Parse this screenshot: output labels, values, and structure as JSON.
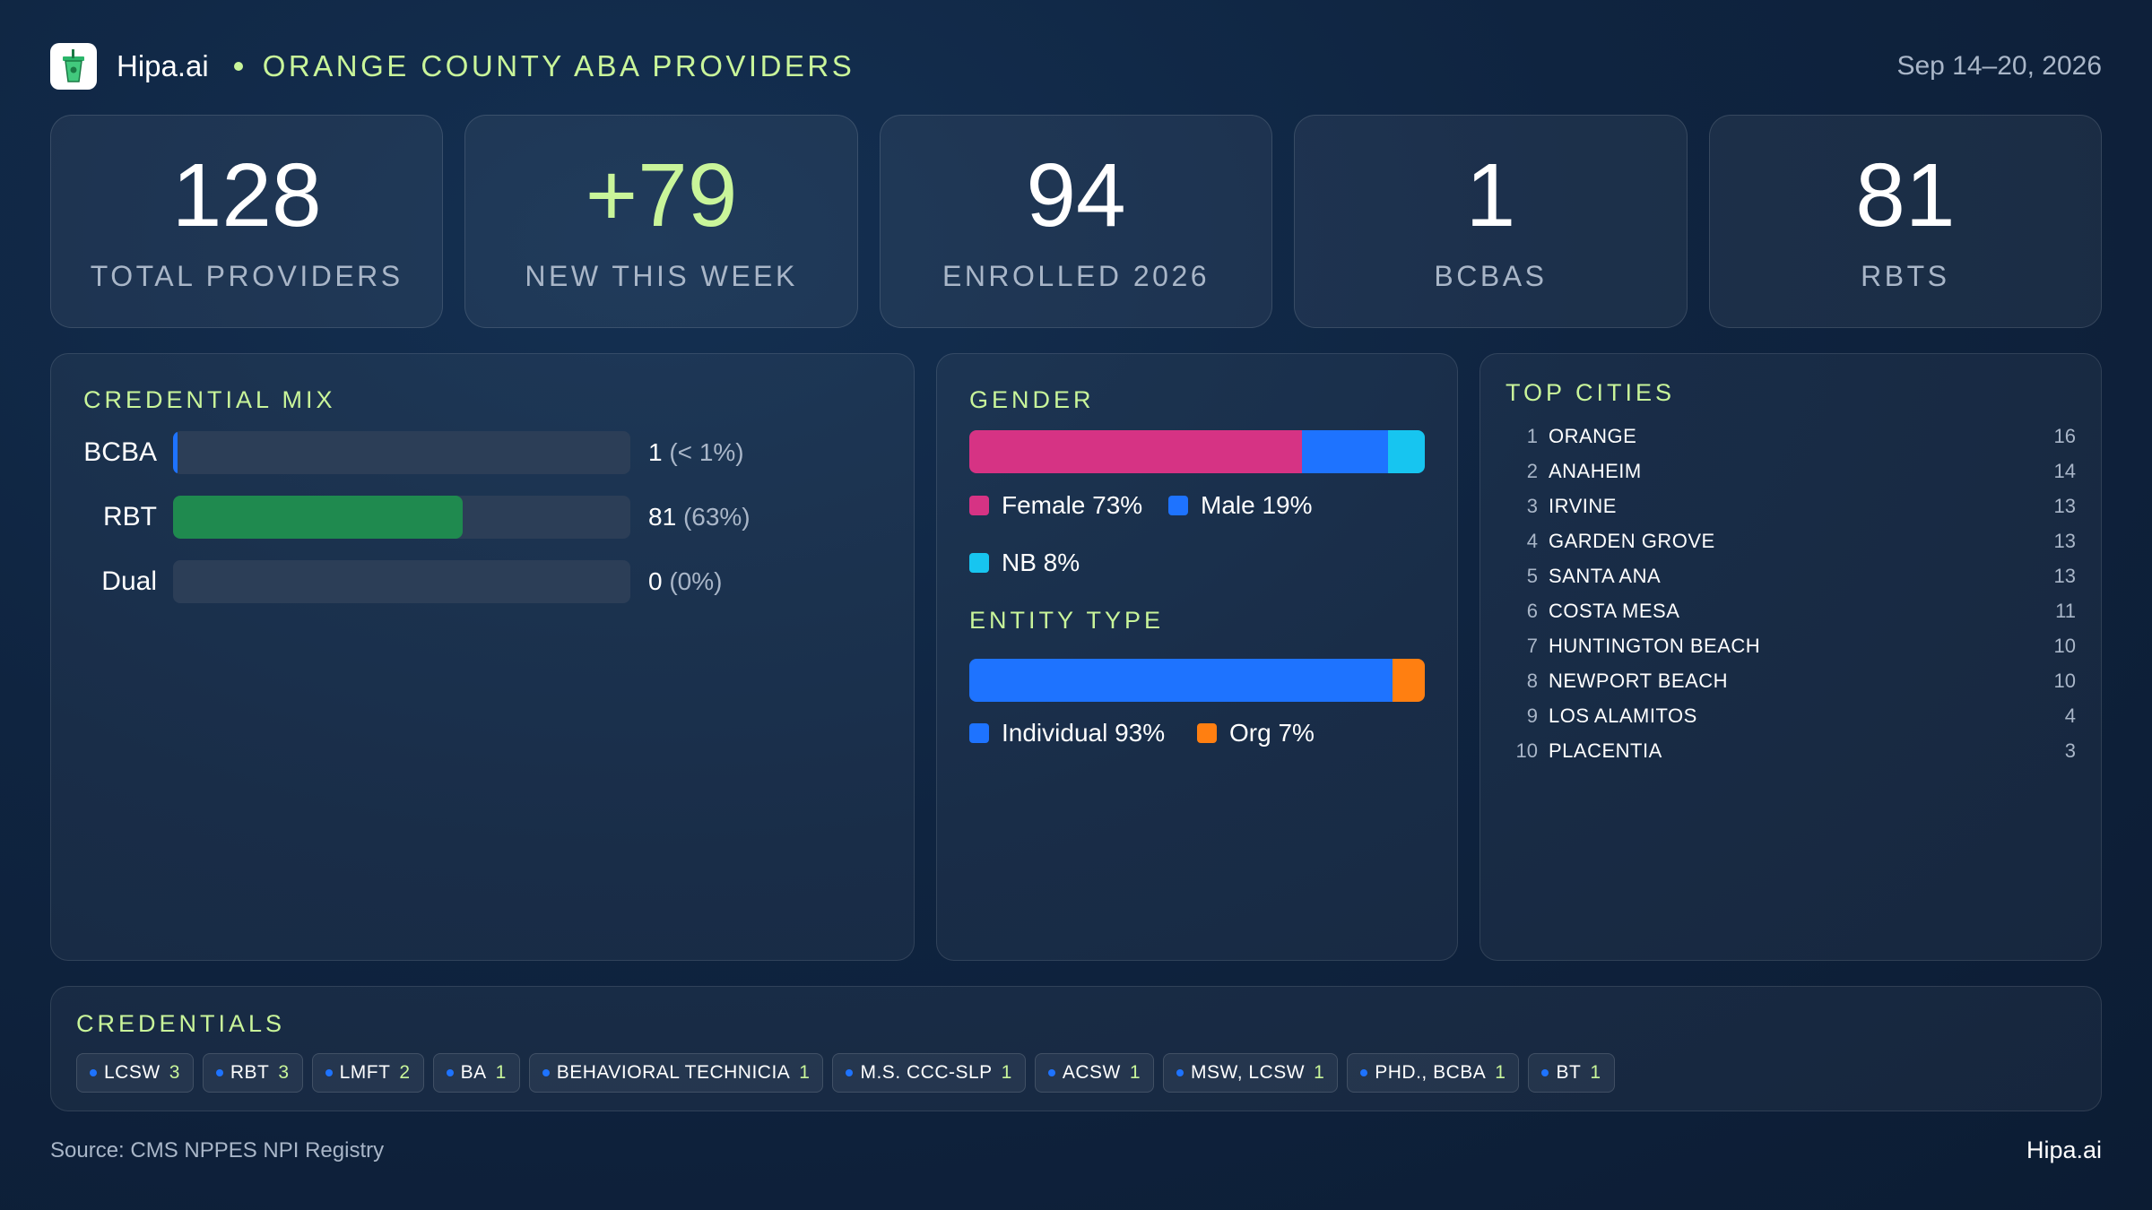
{
  "header": {
    "brand": "Hipa.ai",
    "title": "ORANGE COUNTY ABA PROVIDERS",
    "date_range": "Sep 14–20, 2026"
  },
  "kpis": [
    {
      "value": "128",
      "label": "TOTAL PROVIDERS"
    },
    {
      "value": "+79",
      "label": "NEW THIS WEEK"
    },
    {
      "value": "94",
      "label": "ENROLLED 2026"
    },
    {
      "value": "1",
      "label": "BCBAS"
    },
    {
      "value": "81",
      "label": "RBTS"
    }
  ],
  "colors": {
    "accent": "#c9f59a",
    "bcba": "#1e73ff",
    "rbt": "#1f8a4f",
    "female": "#d63384",
    "male": "#1e73ff",
    "nb": "#17c5f0",
    "individual": "#1e73ff",
    "org": "#ff7f11"
  },
  "chart_data": [
    {
      "type": "bar",
      "title": "CREDENTIAL MIX",
      "categories": [
        "BCBA",
        "RBT",
        "Dual"
      ],
      "values": [
        1,
        81,
        0
      ],
      "value_labels": [
        "1",
        "81",
        "0"
      ],
      "pct_labels": [
        "(< 1%)",
        "(63%)",
        "(0%)"
      ],
      "xlim": [
        0,
        128
      ]
    },
    {
      "type": "bar",
      "title": "GENDER",
      "stacked": true,
      "categories": [
        "Female",
        "Male",
        "NB"
      ],
      "values": [
        73,
        19,
        8
      ],
      "legend": [
        "Female 73%",
        "Male 19%",
        "NB 8%"
      ]
    },
    {
      "type": "bar",
      "title": "ENTITY TYPE",
      "stacked": true,
      "categories": [
        "Individual",
        "Org"
      ],
      "values": [
        93,
        7
      ],
      "legend": [
        "Individual 93%",
        "Org 7%"
      ]
    },
    {
      "type": "table",
      "title": "TOP CITIES",
      "rows": [
        {
          "rank": "1",
          "city": "ORANGE",
          "count": "16"
        },
        {
          "rank": "2",
          "city": "ANAHEIM",
          "count": "14"
        },
        {
          "rank": "3",
          "city": "IRVINE",
          "count": "13"
        },
        {
          "rank": "4",
          "city": "GARDEN GROVE",
          "count": "13"
        },
        {
          "rank": "5",
          "city": "SANTA ANA",
          "count": "13"
        },
        {
          "rank": "6",
          "city": "COSTA MESA",
          "count": "11"
        },
        {
          "rank": "7",
          "city": "HUNTINGTON BEACH",
          "count": "10"
        },
        {
          "rank": "8",
          "city": "NEWPORT BEACH",
          "count": "10"
        },
        {
          "rank": "9",
          "city": "LOS ALAMITOS",
          "count": "4"
        },
        {
          "rank": "10",
          "city": "PLACENTIA",
          "count": "3"
        }
      ]
    }
  ],
  "credentials": {
    "title": "CREDENTIALS",
    "items": [
      {
        "label": "LCSW",
        "count": "3"
      },
      {
        "label": "RBT",
        "count": "3"
      },
      {
        "label": "LMFT",
        "count": "2"
      },
      {
        "label": "BA",
        "count": "1"
      },
      {
        "label": "BEHAVIORAL TECHNICIA",
        "count": "1"
      },
      {
        "label": "M.S. CCC-SLP",
        "count": "1"
      },
      {
        "label": "ACSW",
        "count": "1"
      },
      {
        "label": "MSW, LCSW",
        "count": "1"
      },
      {
        "label": "PHD., BCBA",
        "count": "1"
      },
      {
        "label": "BT",
        "count": "1"
      }
    ]
  },
  "footer": {
    "source": "Source: CMS NPPES NPI Registry",
    "brand": "Hipa.ai"
  }
}
